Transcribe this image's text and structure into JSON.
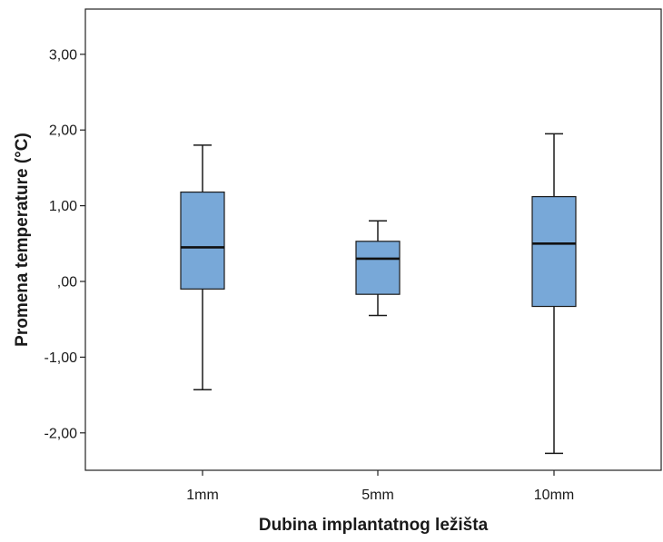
{
  "chart_data": {
    "type": "boxplot",
    "title": "",
    "xlabel": "Dubina implantatnog ležišta",
    "ylabel": "Promena temperature (°C)",
    "ylim": [
      -2.5,
      3.6
    ],
    "y_ticks": [
      3.0,
      2.0,
      1.0,
      0.0,
      -1.0,
      -2.0
    ],
    "y_tick_labels": [
      "3,00",
      "2,00",
      "1,00",
      ",00",
      "-1,00",
      "-2,00"
    ],
    "categories": [
      "1mm",
      "5mm",
      "10mm"
    ],
    "boxes": [
      {
        "category": "1mm",
        "whisker_low": -1.43,
        "q1": -0.1,
        "median": 0.45,
        "q3": 1.18,
        "whisker_high": 1.8
      },
      {
        "category": "5mm",
        "whisker_low": -0.45,
        "q1": -0.17,
        "median": 0.3,
        "q3": 0.53,
        "whisker_high": 0.8
      },
      {
        "category": "10mm",
        "whisker_low": -2.27,
        "q1": -0.33,
        "median": 0.5,
        "q3": 1.12,
        "whisker_high": 1.95
      }
    ],
    "box_color": "#78a8d8",
    "grid": false,
    "legend": "none"
  }
}
